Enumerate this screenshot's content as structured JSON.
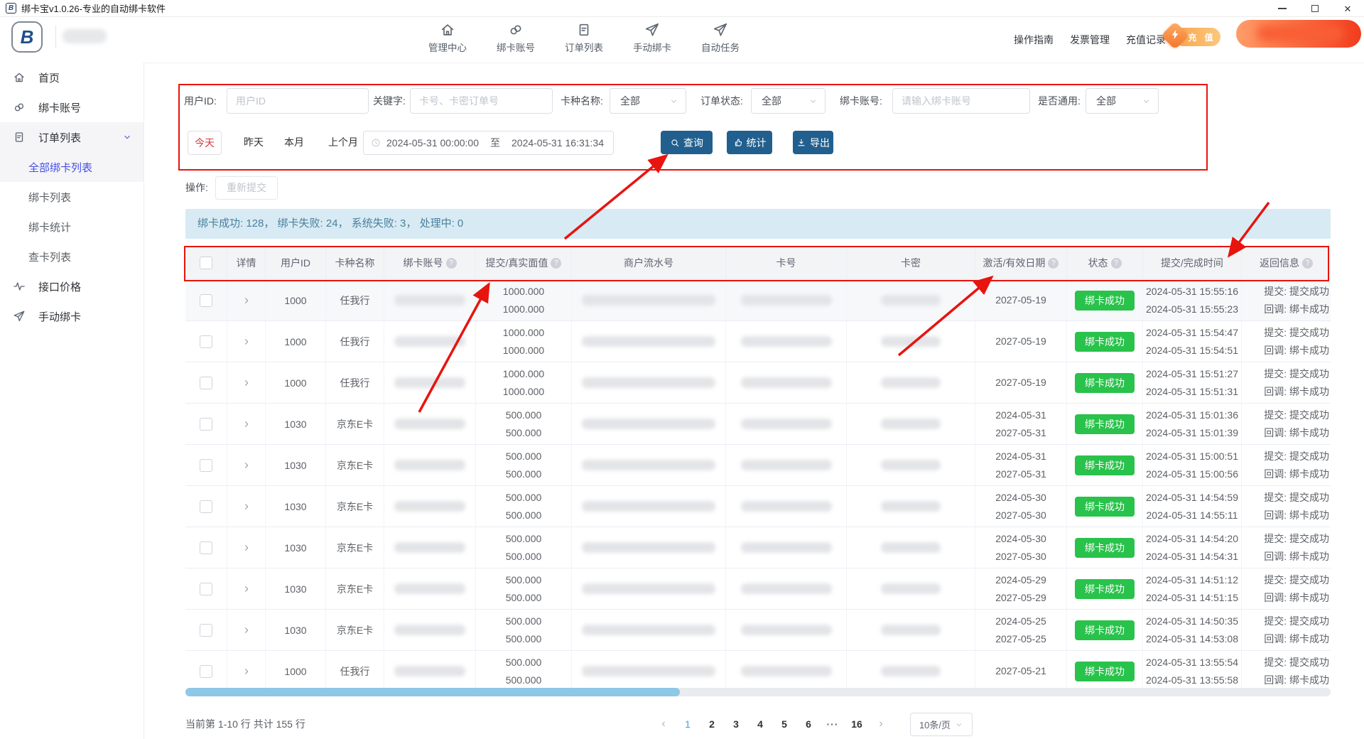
{
  "window": {
    "title": "绑卡宝v1.0.26-专业的自动绑卡软件",
    "logo_letter": "B"
  },
  "header": {
    "nav": [
      {
        "name": "management-center",
        "icon": "home",
        "label": "管理中心"
      },
      {
        "name": "bind-account",
        "icon": "link",
        "label": "绑卡账号"
      },
      {
        "name": "order-list",
        "icon": "file",
        "label": "订单列表"
      },
      {
        "name": "manual-bind",
        "icon": "send",
        "label": "手动绑卡"
      },
      {
        "name": "auto-task",
        "icon": "send",
        "label": "自动任务"
      }
    ],
    "links": [
      {
        "name": "operation-guide",
        "label": "操作指南"
      },
      {
        "name": "invoice-manage",
        "label": "发票管理"
      },
      {
        "name": "recharge-record",
        "label": "充值记录"
      }
    ],
    "recharge_label": "充 值"
  },
  "sidebar": {
    "items": [
      {
        "name": "home",
        "icon": "home",
        "label": "首页"
      },
      {
        "name": "bind-account",
        "icon": "link",
        "label": "绑卡账号"
      },
      {
        "name": "order-list",
        "icon": "file",
        "label": "订单列表",
        "open": true,
        "children": [
          {
            "name": "all-bind-list",
            "label": "全部绑卡列表",
            "active": true
          },
          {
            "name": "bind-list",
            "label": "绑卡列表"
          },
          {
            "name": "bind-stats",
            "label": "绑卡统计"
          },
          {
            "name": "check-card-list",
            "label": "查卡列表"
          }
        ]
      },
      {
        "name": "api-price",
        "icon": "pulse",
        "label": "接口价格"
      },
      {
        "name": "manual-bind",
        "icon": "send",
        "label": "手动绑卡"
      }
    ]
  },
  "filters": {
    "user_id": {
      "label": "用户ID:",
      "placeholder": "用户ID",
      "value": ""
    },
    "keyword": {
      "label": "关键字:",
      "placeholder": "卡号、卡密订单号",
      "value": ""
    },
    "card_type": {
      "label": "卡种名称:",
      "value": "全部"
    },
    "order_status": {
      "label": "订单状态:",
      "value": "全部"
    },
    "bind_account": {
      "label": "绑卡账号:",
      "placeholder": "请输入绑卡账号",
      "value": ""
    },
    "universal": {
      "label": "是否通用:",
      "value": "全部"
    },
    "quick_ranges": [
      "今天",
      "昨天",
      "本月",
      "上个月"
    ],
    "active_range": "今天",
    "date_start": "2024-05-31 00:00:00",
    "date_to_label": "至",
    "date_end": "2024-05-31 16:31:34",
    "buttons": {
      "query": "查询",
      "stats": "统计",
      "export": "导出"
    }
  },
  "operation": {
    "label": "操作:",
    "resubmit": "重新提交"
  },
  "summary": {
    "text": "绑卡成功: 128， 绑卡失败: 24， 系统失败: 3， 处理中: 0"
  },
  "table": {
    "columns": [
      {
        "label": "详情"
      },
      {
        "label": "用户ID"
      },
      {
        "label": "卡种名称"
      },
      {
        "label": "绑卡账号",
        "help": true
      },
      {
        "label": "提交/真实面值",
        "help": true
      },
      {
        "label": "商户流水号"
      },
      {
        "label": "卡号"
      },
      {
        "label": "卡密"
      },
      {
        "label": "激活/有效日期",
        "help": true
      },
      {
        "label": "状态",
        "help": true
      },
      {
        "label": "提交/完成时间"
      },
      {
        "label": "返回信息",
        "help": true
      }
    ],
    "rows": [
      {
        "user_id": "1000",
        "card_type": "任我行",
        "face": [
          "1000.000",
          "1000.000"
        ],
        "dates": [
          "2027-05-19"
        ],
        "status": "绑卡成功",
        "times": [
          "2024-05-31 15:55:16",
          "2024-05-31 15:55:23"
        ],
        "result": [
          "提交: 提交成功",
          "回调: 绑卡成功"
        ]
      },
      {
        "user_id": "1000",
        "card_type": "任我行",
        "face": [
          "1000.000",
          "1000.000"
        ],
        "dates": [
          "2027-05-19"
        ],
        "status": "绑卡成功",
        "times": [
          "2024-05-31 15:54:47",
          "2024-05-31 15:54:51"
        ],
        "result": [
          "提交: 提交成功",
          "回调: 绑卡成功"
        ]
      },
      {
        "user_id": "1000",
        "card_type": "任我行",
        "face": [
          "1000.000",
          "1000.000"
        ],
        "dates": [
          "2027-05-19"
        ],
        "status": "绑卡成功",
        "times": [
          "2024-05-31 15:51:27",
          "2024-05-31 15:51:31"
        ],
        "result": [
          "提交: 提交成功",
          "回调: 绑卡成功"
        ]
      },
      {
        "user_id": "1030",
        "card_type": "京东E卡",
        "face": [
          "500.000",
          "500.000"
        ],
        "dates": [
          "2024-05-31",
          "2027-05-31"
        ],
        "status": "绑卡成功",
        "times": [
          "2024-05-31 15:01:36",
          "2024-05-31 15:01:39"
        ],
        "result": [
          "提交: 提交成功",
          "回调: 绑卡成功"
        ]
      },
      {
        "user_id": "1030",
        "card_type": "京东E卡",
        "face": [
          "500.000",
          "500.000"
        ],
        "dates": [
          "2024-05-31",
          "2027-05-31"
        ],
        "status": "绑卡成功",
        "times": [
          "2024-05-31 15:00:51",
          "2024-05-31 15:00:56"
        ],
        "result": [
          "提交: 提交成功",
          "回调: 绑卡成功"
        ]
      },
      {
        "user_id": "1030",
        "card_type": "京东E卡",
        "face": [
          "500.000",
          "500.000"
        ],
        "dates": [
          "2024-05-30",
          "2027-05-30"
        ],
        "status": "绑卡成功",
        "times": [
          "2024-05-31 14:54:59",
          "2024-05-31 14:55:11"
        ],
        "result": [
          "提交: 提交成功",
          "回调: 绑卡成功"
        ]
      },
      {
        "user_id": "1030",
        "card_type": "京东E卡",
        "face": [
          "500.000",
          "500.000"
        ],
        "dates": [
          "2024-05-30",
          "2027-05-30"
        ],
        "status": "绑卡成功",
        "times": [
          "2024-05-31 14:54:20",
          "2024-05-31 14:54:31"
        ],
        "result": [
          "提交: 提交成功",
          "回调: 绑卡成功"
        ]
      },
      {
        "user_id": "1030",
        "card_type": "京东E卡",
        "face": [
          "500.000",
          "500.000"
        ],
        "dates": [
          "2024-05-29",
          "2027-05-29"
        ],
        "status": "绑卡成功",
        "times": [
          "2024-05-31 14:51:12",
          "2024-05-31 14:51:15"
        ],
        "result": [
          "提交: 提交成功",
          "回调: 绑卡成功"
        ]
      },
      {
        "user_id": "1030",
        "card_type": "京东E卡",
        "face": [
          "500.000",
          "500.000"
        ],
        "dates": [
          "2024-05-25",
          "2027-05-25"
        ],
        "status": "绑卡成功",
        "times": [
          "2024-05-31 14:50:35",
          "2024-05-31 14:53:08"
        ],
        "result": [
          "提交: 提交成功",
          "回调: 绑卡成功"
        ]
      },
      {
        "user_id": "1000",
        "card_type": "任我行",
        "face": [
          "500.000",
          "500.000"
        ],
        "dates": [
          "2027-05-21"
        ],
        "status": "绑卡成功",
        "times": [
          "2024-05-31 13:55:54",
          "2024-05-31 13:55:58"
        ],
        "result": [
          "提交: 提交成功",
          "回调: 绑卡成功"
        ]
      }
    ]
  },
  "pagination": {
    "info": "当前第 1-10 行 共计 155 行",
    "prev": "‹",
    "next": "›",
    "pages": [
      "1",
      "2",
      "3",
      "4",
      "5",
      "6",
      "···",
      "16"
    ],
    "current": "1",
    "page_size": "10条/页"
  },
  "colors": {
    "accent_blue": "#215f8e",
    "active_purple": "#4650e5",
    "success_green": "#29c24b",
    "stats_bg": "#d8ebf4",
    "annotation_red": "#e8140e",
    "recharge_orange": "#f8a44a"
  }
}
